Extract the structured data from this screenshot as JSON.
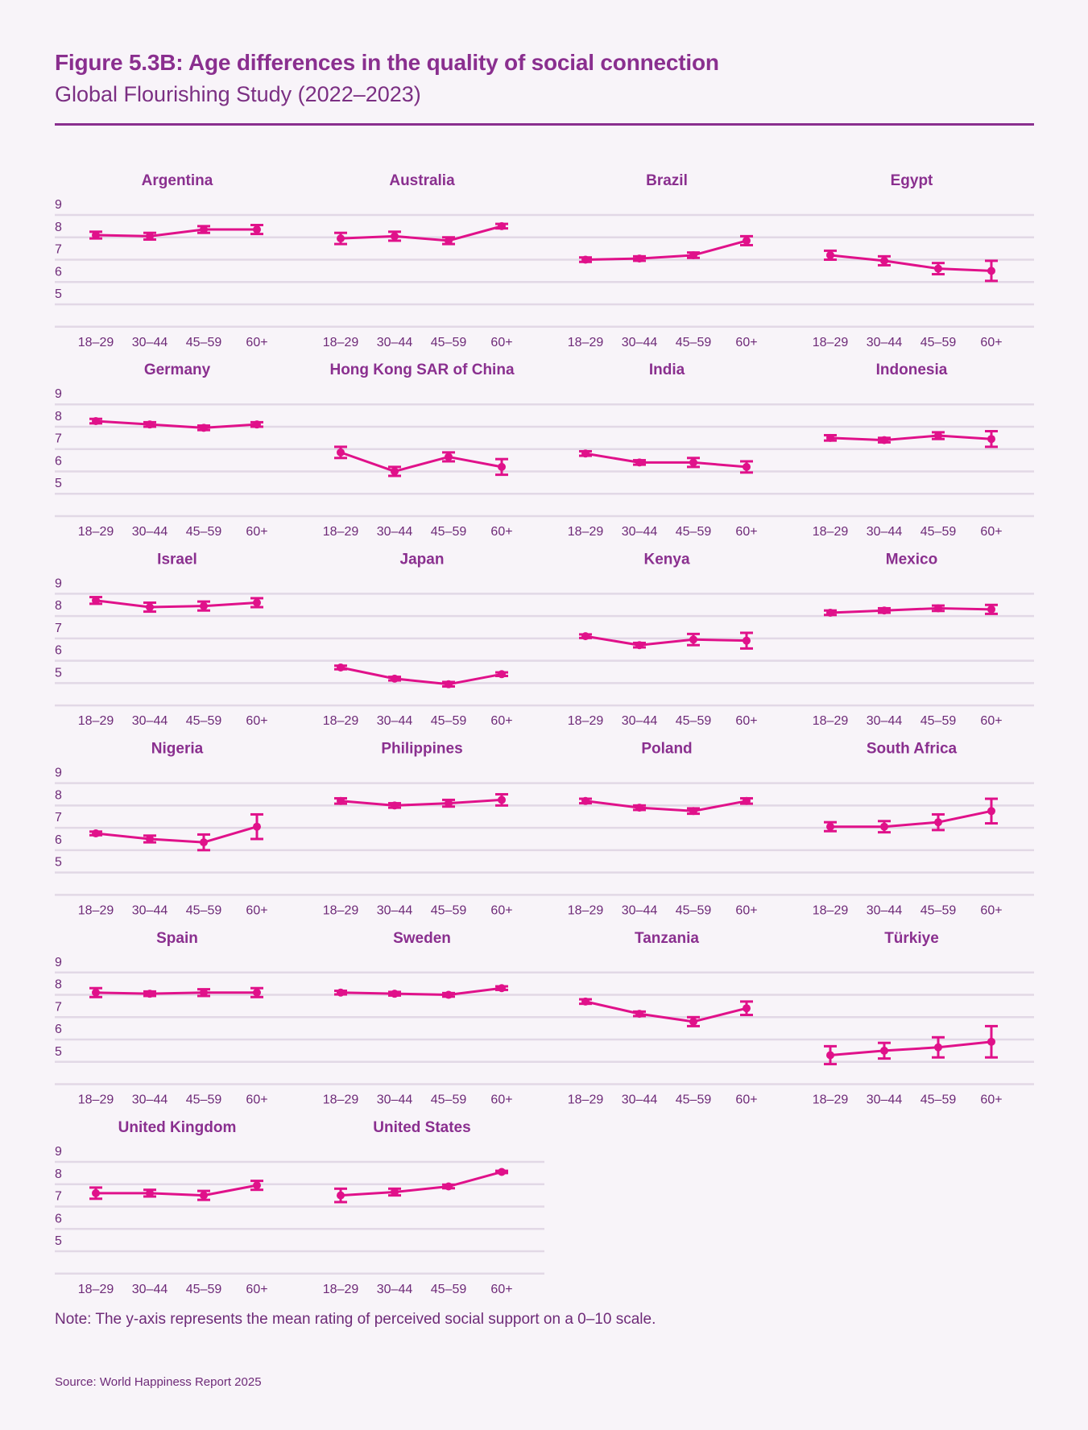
{
  "header": {
    "title": "Figure 5.3B: Age differences in the quality of social connection",
    "subtitle": "Global Flourishing Study (2022–2023)"
  },
  "footer": {
    "note": "Note: The y-axis represents the mean rating of perceived social support on a 0–10 scale.",
    "source": "Source: World Happiness Report 2025"
  },
  "colors": {
    "series": "#e0118a",
    "title": "#8a2f8f",
    "text": "#6e2a78",
    "grid": "#e2d8e6",
    "background": "#f8f4f9"
  },
  "chart_data": {
    "type": "line",
    "title": "Figure 5.3B: Age differences in the quality of social connection",
    "subtitle": "Global Flourishing Study (2022–2023)",
    "xlabel": "",
    "ylabel": "Mean rating of perceived social support (0–10)",
    "categories": [
      "18–29",
      "30–44",
      "45–59",
      "60+"
    ],
    "yticks": [
      9,
      8,
      7,
      6,
      5
    ],
    "ylim": [
      5,
      9
    ],
    "grid": true,
    "error_bars": true,
    "panels": [
      {
        "name": "Argentina",
        "values": [
          8.1,
          8.05,
          8.35,
          8.35
        ],
        "errors": [
          0.15,
          0.15,
          0.15,
          0.2
        ]
      },
      {
        "name": "Australia",
        "values": [
          7.95,
          8.05,
          7.85,
          8.5
        ],
        "errors": [
          0.25,
          0.2,
          0.15,
          0.1
        ]
      },
      {
        "name": "Brazil",
        "values": [
          7.0,
          7.05,
          7.2,
          7.85
        ],
        "errors": [
          0.1,
          0.1,
          0.12,
          0.2
        ]
      },
      {
        "name": "Egypt",
        "values": [
          7.2,
          6.95,
          6.6,
          6.5
        ],
        "errors": [
          0.2,
          0.2,
          0.25,
          0.45
        ]
      },
      {
        "name": "Germany",
        "values": [
          8.25,
          8.1,
          7.95,
          8.1
        ],
        "errors": [
          0.1,
          0.1,
          0.1,
          0.1
        ]
      },
      {
        "name": "Hong Kong SAR of China",
        "values": [
          6.85,
          6.0,
          6.65,
          6.2
        ],
        "errors": [
          0.25,
          0.2,
          0.2,
          0.35
        ]
      },
      {
        "name": "India",
        "values": [
          6.8,
          6.4,
          6.4,
          6.2
        ],
        "errors": [
          0.1,
          0.1,
          0.2,
          0.25
        ]
      },
      {
        "name": "Indonesia",
        "values": [
          7.5,
          7.4,
          7.6,
          7.45
        ],
        "errors": [
          0.12,
          0.1,
          0.15,
          0.35
        ]
      },
      {
        "name": "Israel",
        "values": [
          8.7,
          8.4,
          8.45,
          8.6
        ],
        "errors": [
          0.15,
          0.2,
          0.2,
          0.2
        ]
      },
      {
        "name": "Japan",
        "values": [
          5.7,
          5.2,
          4.95,
          5.4
        ],
        "errors": [
          0.08,
          0.08,
          0.1,
          0.08
        ]
      },
      {
        "name": "Kenya",
        "values": [
          7.1,
          6.7,
          6.95,
          6.9
        ],
        "errors": [
          0.08,
          0.1,
          0.25,
          0.35
        ]
      },
      {
        "name": "Mexico",
        "values": [
          8.15,
          8.25,
          8.35,
          8.3
        ],
        "errors": [
          0.1,
          0.1,
          0.12,
          0.2
        ]
      },
      {
        "name": "Nigeria",
        "values": [
          6.75,
          6.5,
          6.35,
          7.05
        ],
        "errors": [
          0.08,
          0.15,
          0.35,
          0.55
        ]
      },
      {
        "name": "Philippines",
        "values": [
          8.2,
          8.0,
          8.1,
          8.25
        ],
        "errors": [
          0.12,
          0.1,
          0.15,
          0.25
        ]
      },
      {
        "name": "Poland",
        "values": [
          8.2,
          7.9,
          7.75,
          8.2
        ],
        "errors": [
          0.1,
          0.1,
          0.12,
          0.12
        ]
      },
      {
        "name": "South Africa",
        "values": [
          7.05,
          7.05,
          7.25,
          7.75
        ],
        "errors": [
          0.2,
          0.25,
          0.35,
          0.55
        ]
      },
      {
        "name": "Spain",
        "values": [
          8.1,
          8.05,
          8.1,
          8.1
        ],
        "errors": [
          0.2,
          0.1,
          0.15,
          0.2
        ]
      },
      {
        "name": "Sweden",
        "values": [
          8.1,
          8.05,
          8.0,
          8.3
        ],
        "errors": [
          0.08,
          0.08,
          0.08,
          0.08
        ]
      },
      {
        "name": "Tanzania",
        "values": [
          7.7,
          7.15,
          6.8,
          7.4
        ],
        "errors": [
          0.1,
          0.1,
          0.2,
          0.3
        ]
      },
      {
        "name": "Türkiye",
        "values": [
          5.3,
          5.5,
          5.65,
          5.9
        ],
        "errors": [
          0.4,
          0.35,
          0.45,
          0.7
        ]
      },
      {
        "name": "United Kingdom",
        "values": [
          7.6,
          7.6,
          7.5,
          7.95
        ],
        "errors": [
          0.25,
          0.15,
          0.2,
          0.2
        ]
      },
      {
        "name": "United States",
        "values": [
          7.5,
          7.65,
          7.9,
          8.55
        ],
        "errors": [
          0.3,
          0.15,
          0.08,
          0.05
        ]
      }
    ]
  }
}
